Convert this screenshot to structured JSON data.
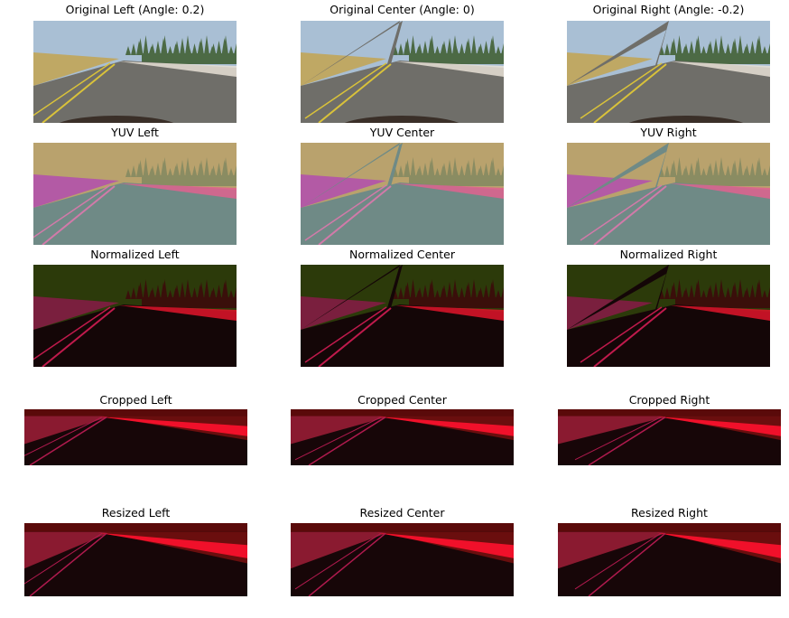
{
  "figure": {
    "rows": [
      {
        "key": "original",
        "titles": [
          "Original Left (Angle: 0.2)",
          "Original Center (Angle: 0)",
          "Original Right (Angle: -0.2)"
        ]
      },
      {
        "key": "yuv",
        "titles": [
          "YUV Left",
          "YUV Center",
          "YUV Right"
        ]
      },
      {
        "key": "normalized",
        "titles": [
          "Normalized Left",
          "Normalized Center",
          "Normalized Right"
        ]
      },
      {
        "key": "cropped",
        "titles": [
          "Cropped Left",
          "Cropped Center",
          "Cropped Right"
        ]
      },
      {
        "key": "resized",
        "titles": [
          "Resized Left",
          "Resized Center",
          "Resized Right"
        ]
      }
    ]
  },
  "palette": {
    "original": {
      "sky": "#a9bfd4",
      "trees": "#4c6a45",
      "grass": "#bfa864",
      "road": "#6f6e69",
      "line": "#d9c23a",
      "edge": "#e8e0d6",
      "hood": "#3a2f28"
    },
    "yuv": {
      "sky": "#b9a26d",
      "trees": "#8a8c62",
      "grass": "#b35aa5",
      "road": "#6f8a86",
      "line": "#d27aa9",
      "edge": "#e0628f"
    },
    "normalized": {
      "sky": "#2c3a0a",
      "trees": "#3a0f0a",
      "grass": "#7a1f3e",
      "road": "#140607",
      "line": "#c01a4c",
      "edge": "#e0152a"
    },
    "processed": {
      "sky": "#5a0a0a",
      "trees": "#6a0e0e",
      "grass": "#8a1a30",
      "road": "#170608",
      "line": "#b01a4e",
      "edge": "#f0102a"
    }
  }
}
